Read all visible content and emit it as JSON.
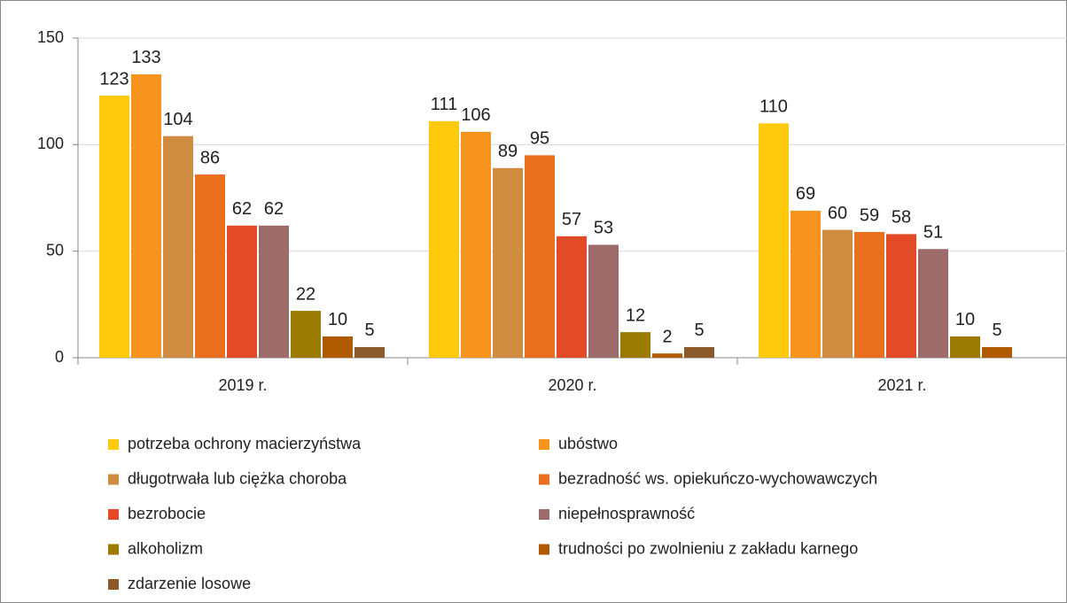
{
  "chart_data": {
    "type": "bar",
    "categories": [
      "2019 r.",
      "2020 r.",
      "2021 r."
    ],
    "series": [
      {
        "name": "potrzeba ochrony macierzyństwa",
        "color": "#ffc90e",
        "values": [
          123,
          111,
          110
        ]
      },
      {
        "name": "ubóstwo",
        "color": "#f7941d",
        "values": [
          133,
          106,
          69
        ]
      },
      {
        "name": "długotrwała lub ciężka choroba",
        "color": "#d08c40",
        "values": [
          104,
          89,
          60
        ]
      },
      {
        "name": "bezradność ws. opiekuńczo-wychowawczych",
        "color": "#ea7020",
        "values": [
          86,
          95,
          59
        ]
      },
      {
        "name": "bezrobocie",
        "color": "#e34a27",
        "values": [
          62,
          57,
          58
        ]
      },
      {
        "name": "niepełnosprawność",
        "color": "#9e6b6b",
        "values": [
          62,
          53,
          51
        ]
      },
      {
        "name": "alkoholizm",
        "color": "#9a7b00",
        "values": [
          22,
          12,
          10
        ]
      },
      {
        "name": "trudności po zwolnieniu z zakładu karnego",
        "color": "#b05a00",
        "values": [
          10,
          2,
          5
        ]
      },
      {
        "name": "zdarzenie losowe",
        "color": "#8b5a2b",
        "values": [
          5,
          5,
          null
        ]
      }
    ],
    "ylim": [
      0,
      150
    ],
    "yticks": [
      0,
      50,
      100,
      150
    ],
    "grid": true,
    "legend": "bottom"
  }
}
